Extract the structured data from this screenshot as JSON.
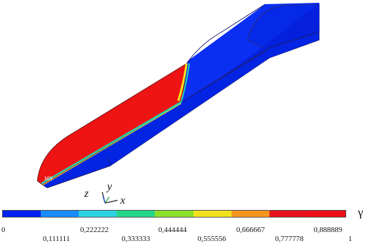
{
  "point_label": "MN",
  "axes": {
    "x": "x",
    "y": "y",
    "z": "z"
  },
  "colorbar": {
    "symbol": "γ",
    "upper_ticks": [
      "0",
      "0,222222",
      "0,444444",
      "0,666667",
      "0,888889"
    ],
    "lower_ticks": [
      "0,111111",
      "0,333333",
      "0,555556",
      "0,777778",
      "1"
    ],
    "colors": [
      "#0022ee",
      "#1a8cff",
      "#2cd2e0",
      "#24d68a",
      "#8ce02a",
      "#f2e21e",
      "#f7941d",
      "#e8121e",
      "#ec0f17"
    ]
  },
  "colors": {
    "water": "#0022ee",
    "air": "#ec1515",
    "interface": "#22d6b0"
  }
}
